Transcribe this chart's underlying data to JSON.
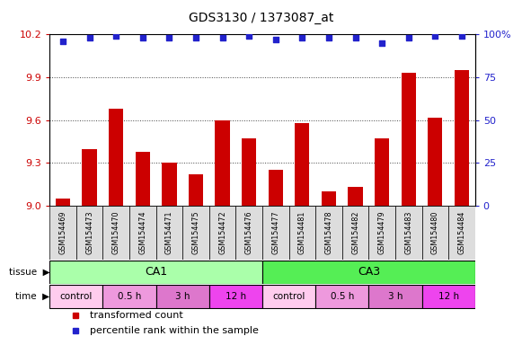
{
  "title": "GDS3130 / 1373087_at",
  "samples": [
    "GSM154469",
    "GSM154473",
    "GSM154470",
    "GSM154474",
    "GSM154471",
    "GSM154475",
    "GSM154472",
    "GSM154476",
    "GSM154477",
    "GSM154481",
    "GSM154478",
    "GSM154482",
    "GSM154479",
    "GSM154483",
    "GSM154480",
    "GSM154484"
  ],
  "bar_values": [
    9.05,
    9.4,
    9.68,
    9.38,
    9.3,
    9.22,
    9.6,
    9.47,
    9.25,
    9.58,
    9.1,
    9.13,
    9.47,
    9.93,
    9.62,
    9.95
  ],
  "percentile_values": [
    96,
    98,
    99,
    98,
    98,
    98,
    98,
    99,
    97,
    98,
    98,
    98,
    95,
    98,
    99,
    99
  ],
  "ylim": [
    9.0,
    10.2
  ],
  "y2lim": [
    0,
    100
  ],
  "yticks": [
    9.0,
    9.3,
    9.6,
    9.9,
    10.2
  ],
  "y2ticks": [
    0,
    25,
    50,
    75,
    100
  ],
  "bar_color": "#cc0000",
  "dot_color": "#2222cc",
  "bg_color": "#ffffff",
  "plot_bg": "#ffffff",
  "tissue_CA1_color": "#aaffaa",
  "tissue_CA3_color": "#55ee55",
  "time_control_color": "#ffccee",
  "time_05h_color": "#ee99dd",
  "time_3h_color": "#dd77cc",
  "time_12h_color": "#ee44ee",
  "tick_label_color_left": "#cc0000",
  "tick_label_color_right": "#2222cc",
  "grid_color": "#444444",
  "xlabel_bg": "#dddddd",
  "legend_items": [
    {
      "label": "transformed count",
      "color": "#cc0000"
    },
    {
      "label": "percentile rank within the sample",
      "color": "#2222cc"
    }
  ]
}
